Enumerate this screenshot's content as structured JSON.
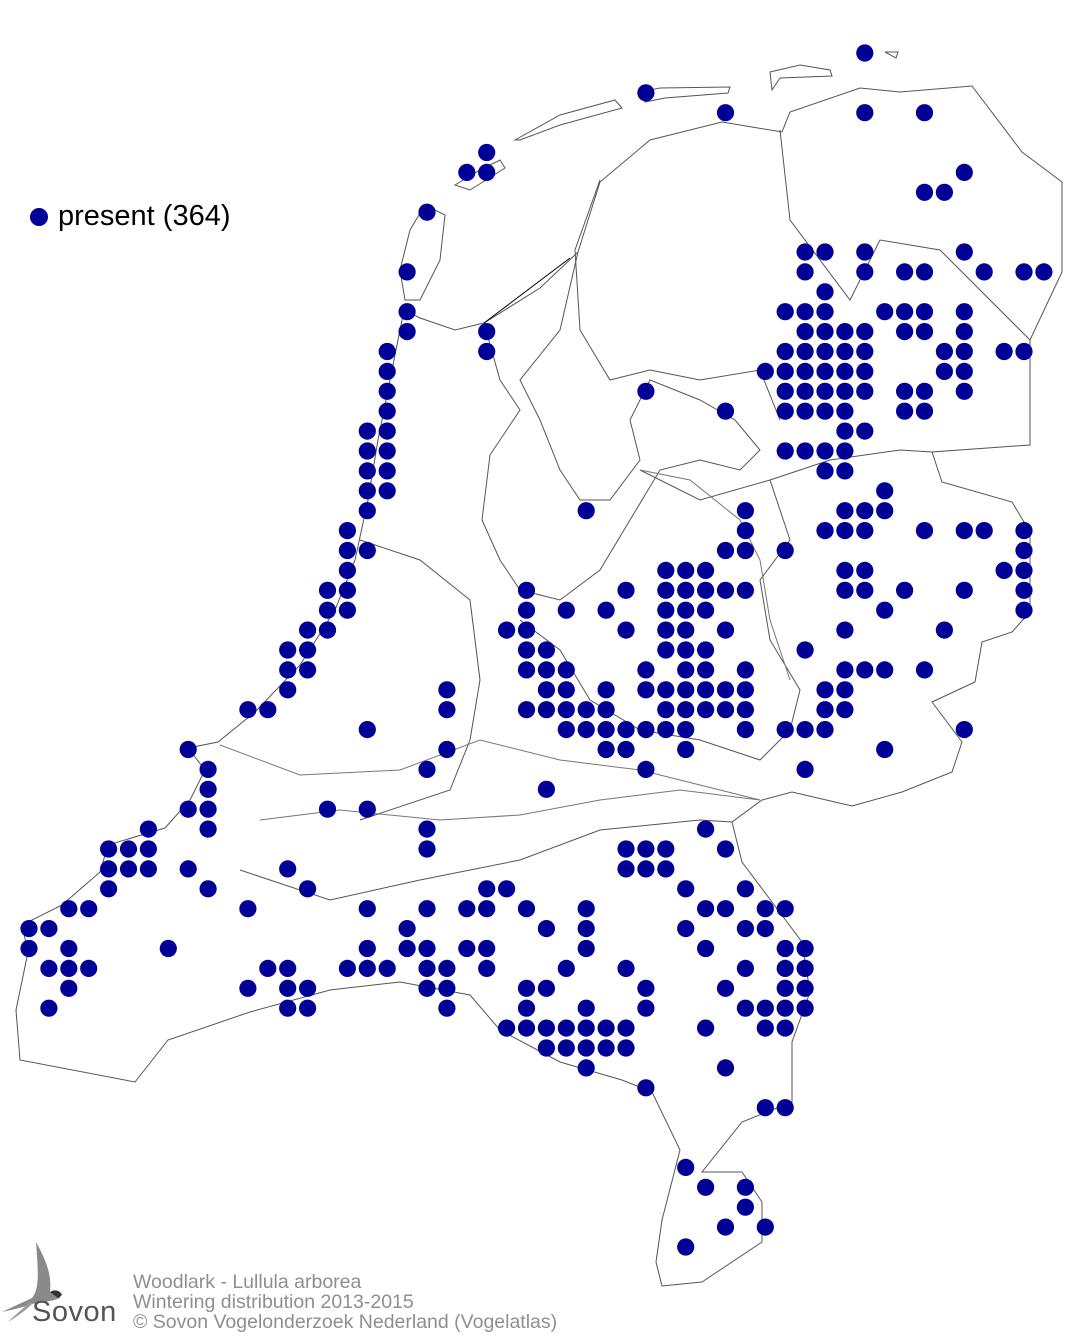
{
  "map": {
    "dot_color": "#000096",
    "outline_color": "#555555",
    "legend": {
      "label": "present (364)",
      "icon": "filled-circle"
    }
  },
  "caption": {
    "line1": "Woodlark - Lullula arborea",
    "line2": "Wintering distribution 2013-2015",
    "line3": "© Sovon Vogelonderzoek Nederland (Vogelatlas)"
  },
  "logo": {
    "text": "Sovon",
    "icon": "swallow-logo"
  }
}
